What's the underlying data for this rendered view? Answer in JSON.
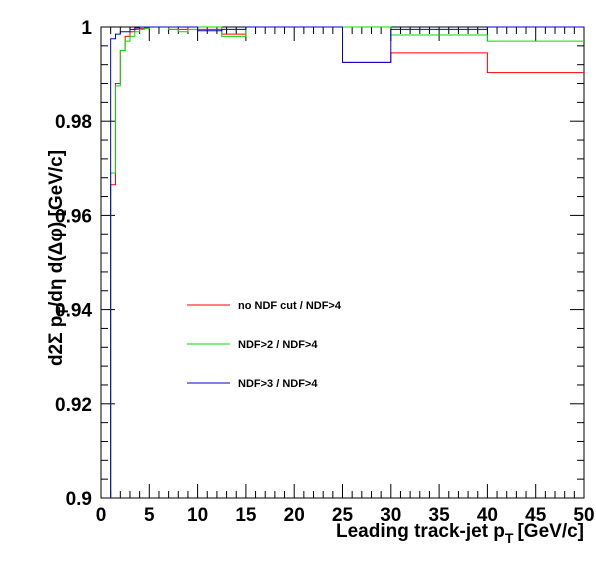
{
  "chart_data": {
    "type": "line",
    "xlabel": "Leading track-jet p",
    "xlabel_sub": "T",
    "xlabel_unit": "[GeV/c]",
    "ylabel_parts": [
      "d2Σ p",
      "T",
      "/dη d(Δφ) [GeV/c]"
    ],
    "xlim": [
      0,
      50
    ],
    "ylim": [
      0.9,
      1.0
    ],
    "x_ticks": [
      "0",
      "5",
      "10",
      "15",
      "20",
      "25",
      "30",
      "35",
      "40",
      "45",
      "50"
    ],
    "y_ticks": [
      "0.9",
      "0.92",
      "0.94",
      "0.96",
      "0.98",
      "1"
    ],
    "y_tick_values": [
      0.9,
      0.92,
      0.94,
      0.96,
      0.98,
      1.0
    ],
    "legend_position": "center-left",
    "series": [
      {
        "name": "no NDF cut / NDF>4",
        "color": "#ff0000",
        "edges": [
          1,
          1.5,
          2,
          2.5,
          3,
          3.5,
          4,
          4.5,
          5,
          6,
          7,
          8,
          9,
          10,
          12.5,
          15,
          20,
          25,
          30,
          40,
          50
        ],
        "values": [
          0.9665,
          0.988,
          0.995,
          0.998,
          0.999,
          0.9995,
          0.9997,
          0.9999,
          1.0,
          1.0,
          0.9995,
          0.9995,
          1.0,
          0.9995,
          0.9985,
          1.001,
          1.002,
          0.9925,
          0.9945,
          0.9903
        ]
      },
      {
        "name": "NDF>2 / NDF>4",
        "color": "#00dd00",
        "edges": [
          1,
          1.5,
          2,
          2.5,
          3,
          3.5,
          4,
          4.5,
          5,
          6,
          7,
          8,
          9,
          10,
          12.5,
          15,
          20,
          25,
          30,
          40,
          50
        ],
        "values": [
          0.969,
          0.9875,
          0.995,
          0.997,
          0.998,
          0.999,
          0.9995,
          0.9997,
          1.0,
          1.0002,
          0.9995,
          0.999,
          0.9995,
          1.001,
          0.998,
          1.003,
          1.0035,
          1.0025,
          0.9983,
          0.997
        ]
      },
      {
        "name": "NDF>3 / NDF>4",
        "color": "#0000cc",
        "edges": [
          1,
          1.5,
          2,
          2.5,
          3,
          3.5,
          4,
          4.5,
          5,
          6,
          7,
          8,
          9,
          10,
          12.5,
          15,
          20,
          25,
          30,
          40,
          50
        ],
        "values": [
          0.9975,
          0.9985,
          0.999,
          0.999,
          0.9995,
          0.9998,
          1.0,
          1.0,
          1.0003,
          1.0,
          1.0,
          1.0005,
          1.0015,
          0.9992,
          0.9995,
          1.0008,
          1.005,
          0.9925,
          0.9995,
          1.0003
        ]
      }
    ]
  }
}
